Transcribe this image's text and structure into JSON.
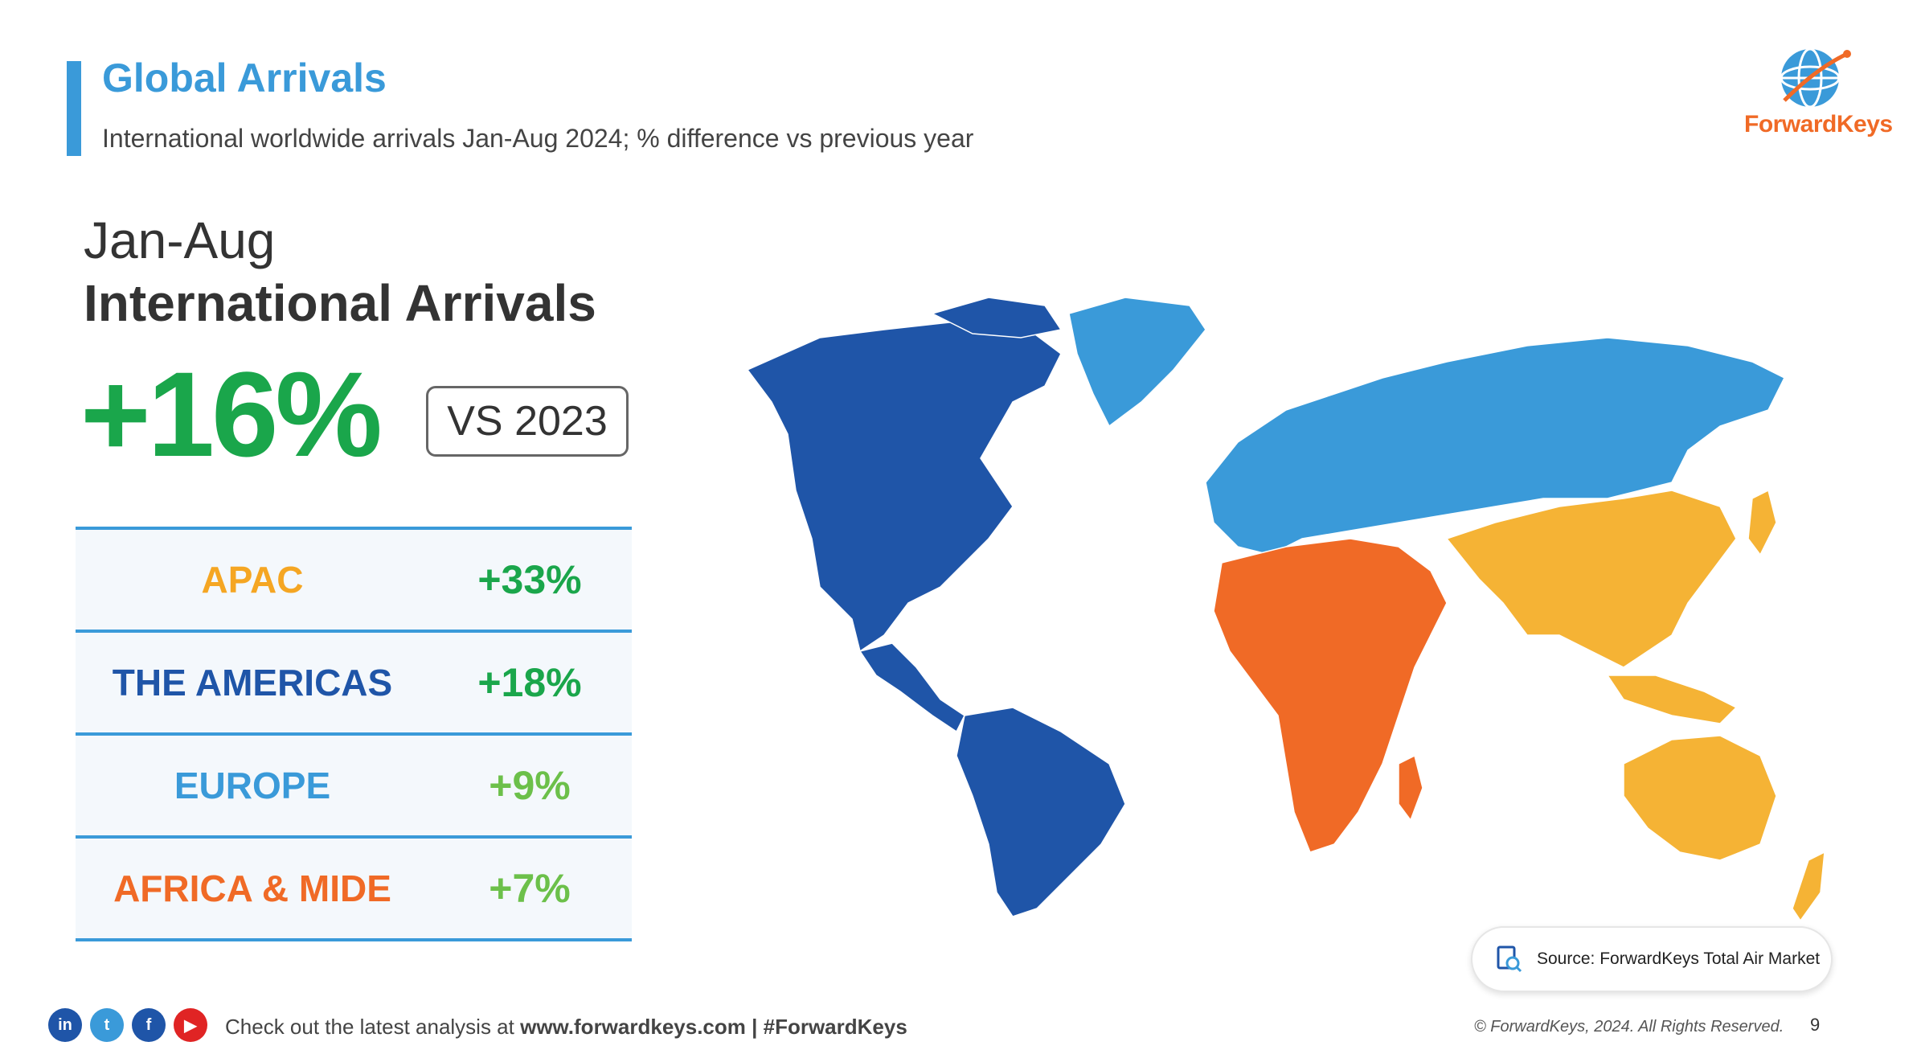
{
  "header": {
    "title": "Global Arrivals",
    "subtitle": "International worldwide arrivals Jan-Aug 2024; % difference vs previous year"
  },
  "logo": {
    "text": "ForwardKeys",
    "icon": "globe-logo-icon"
  },
  "hero": {
    "period": "Jan-Aug",
    "metric": "International Arrivals",
    "change": "+16%",
    "comparison": "VS 2023"
  },
  "regions": [
    {
      "name": "APAC",
      "change": "+33%",
      "name_color": "#f5a623",
      "value_color": "#1aa64b"
    },
    {
      "name": "THE AMERICAS",
      "change": "+18%",
      "name_color": "#1f55a8",
      "value_color": "#1aa64b"
    },
    {
      "name": "EUROPE",
      "change": "+9%",
      "name_color": "#3a9ad9",
      "value_color": "#6cc04a"
    },
    {
      "name": "AFRICA & MIDE",
      "change": "+7%",
      "name_color": "#f06a26",
      "value_color": "#6cc04a"
    }
  ],
  "map": {
    "colors": {
      "americas": "#1f55a8",
      "europe": "#3a9ad9",
      "africa_mide": "#f06a26",
      "apac": "#f5b335"
    }
  },
  "source": {
    "text": "Source: ForwardKeys Total Air Market",
    "icon": "document-search-icon"
  },
  "footer": {
    "social": [
      "linkedin-icon",
      "twitter-icon",
      "facebook-icon",
      "youtube-icon"
    ],
    "text_prefix": "Check out the latest analysis at ",
    "text_bold": "www.forwardkeys.com | #ForwardKeys",
    "copyright": "© ForwardKeys, 2024. All Rights Reserved.",
    "page_number": "9"
  }
}
